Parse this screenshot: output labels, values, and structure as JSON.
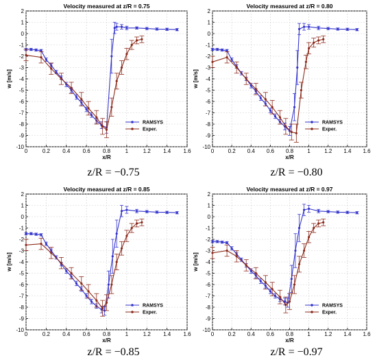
{
  "chart_data": [
    {
      "type": "line",
      "title": "Velocity measured at z/R = 0.75",
      "caption": "z/R = −0.75",
      "xlabel": "x/R",
      "ylabel": "w [m/s]",
      "xlim": [
        0,
        1.6
      ],
      "ylim": [
        -10,
        2
      ],
      "xticks": [
        "0",
        "0.2",
        "0.4",
        "0.6",
        "0.8",
        "1",
        "1.2",
        "1.4",
        "1.6"
      ],
      "yticks": [
        "-10",
        "-9",
        "-8",
        "-7",
        "-6",
        "-5",
        "-4",
        "-3",
        "-2",
        "-1",
        "0",
        "1",
        "2"
      ],
      "grid": true,
      "legend": "bottom-right",
      "series": [
        {
          "name": "RAMSYS",
          "color": "#3333cc",
          "x": [
            0,
            0.05,
            0.1,
            0.15,
            0.2,
            0.25,
            0.3,
            0.35,
            0.4,
            0.45,
            0.5,
            0.55,
            0.6,
            0.65,
            0.7,
            0.75,
            0.8,
            0.85,
            0.88,
            0.9,
            0.95,
            1.0,
            1.1,
            1.2,
            1.3,
            1.4,
            1.5
          ],
          "y": [
            -1.4,
            -1.4,
            -1.45,
            -1.5,
            -2.3,
            -2.8,
            -3.4,
            -3.9,
            -4.5,
            -5.0,
            -5.6,
            -6.1,
            -6.7,
            -7.2,
            -7.7,
            -8.1,
            -8.3,
            -2.0,
            0.5,
            0.6,
            0.6,
            0.5,
            0.5,
            0.45,
            0.4,
            0.38,
            0.35
          ],
          "err": [
            0.1,
            0.1,
            0.1,
            0.1,
            0.15,
            0.15,
            0.15,
            0.15,
            0.2,
            0.2,
            0.2,
            0.2,
            0.2,
            0.2,
            0.2,
            0.3,
            0.5,
            1.5,
            0.5,
            0.3,
            0.2,
            0.15,
            0.1,
            0.1,
            0.1,
            0.1,
            0.1
          ]
        },
        {
          "name": "Exper.",
          "color": "#8b2a1a",
          "x": [
            0,
            0.15,
            0.25,
            0.35,
            0.45,
            0.55,
            0.62,
            0.7,
            0.76,
            0.8,
            0.85,
            0.9,
            0.95,
            1.0,
            1.05,
            1.1,
            1.15
          ],
          "y": [
            -1.9,
            -2.1,
            -3.1,
            -4.0,
            -4.8,
            -5.8,
            -6.6,
            -7.4,
            -8.2,
            -8.5,
            -6.5,
            -4.2,
            -3.0,
            -1.8,
            -1.0,
            -0.6,
            -0.5
          ],
          "err": [
            0.5,
            0.5,
            0.5,
            0.5,
            0.5,
            0.6,
            0.6,
            0.6,
            0.7,
            0.7,
            0.8,
            0.7,
            0.6,
            0.5,
            0.4,
            0.3,
            0.3
          ]
        }
      ]
    },
    {
      "type": "line",
      "title": "Velocity measured at z/R = 0.80",
      "caption": "z/R = −0.80",
      "xlabel": "x/R",
      "ylabel": "w [m/s]",
      "xlim": [
        0,
        1.6
      ],
      "ylim": [
        -10,
        2
      ],
      "xticks": [
        "0",
        "0.2",
        "0.4",
        "0.6",
        "0.8",
        "1",
        "1.2",
        "1.4",
        "1.6"
      ],
      "yticks": [
        "-10",
        "-9",
        "-8",
        "-7",
        "-6",
        "-5",
        "-4",
        "-3",
        "-2",
        "-1",
        "0",
        "1",
        "2"
      ],
      "grid": true,
      "legend": "bottom-right",
      "series": [
        {
          "name": "RAMSYS",
          "color": "#3333cc",
          "x": [
            0,
            0.05,
            0.1,
            0.15,
            0.2,
            0.25,
            0.3,
            0.35,
            0.4,
            0.45,
            0.5,
            0.55,
            0.6,
            0.65,
            0.7,
            0.75,
            0.8,
            0.85,
            0.88,
            0.9,
            0.95,
            1.0,
            1.1,
            1.2,
            1.3,
            1.4,
            1.5
          ],
          "y": [
            -1.4,
            -1.4,
            -1.45,
            -1.5,
            -2.3,
            -2.9,
            -3.5,
            -4.0,
            -4.6,
            -5.1,
            -5.7,
            -6.2,
            -6.8,
            -7.3,
            -7.8,
            -8.2,
            -8.6,
            -6.5,
            -3.0,
            0.4,
            0.6,
            0.6,
            0.5,
            0.45,
            0.4,
            0.38,
            0.35
          ],
          "err": [
            0.1,
            0.1,
            0.1,
            0.1,
            0.15,
            0.15,
            0.15,
            0.15,
            0.2,
            0.2,
            0.2,
            0.2,
            0.2,
            0.2,
            0.2,
            0.3,
            0.4,
            1.2,
            1.5,
            0.5,
            0.3,
            0.2,
            0.15,
            0.1,
            0.1,
            0.1,
            0.1
          ]
        },
        {
          "name": "Exper.",
          "color": "#8b2a1a",
          "x": [
            0,
            0.15,
            0.25,
            0.35,
            0.45,
            0.55,
            0.62,
            0.7,
            0.76,
            0.82,
            0.87,
            0.92,
            0.97,
            1.0,
            1.05,
            1.1,
            1.15
          ],
          "y": [
            -2.5,
            -2.1,
            -3.0,
            -4.0,
            -4.9,
            -5.8,
            -6.5,
            -7.4,
            -8.2,
            -8.7,
            -8.8,
            -5.0,
            -2.5,
            -1.3,
            -0.8,
            -0.6,
            -0.5
          ],
          "err": [
            0.5,
            0.5,
            0.5,
            0.5,
            0.5,
            0.6,
            0.6,
            0.6,
            0.7,
            0.7,
            0.8,
            0.7,
            0.6,
            0.5,
            0.4,
            0.3,
            0.3
          ]
        }
      ]
    },
    {
      "type": "line",
      "title": "Velocity measured at z/R = 0.85",
      "caption": "z/R = −0.85",
      "xlabel": "x/R",
      "ylabel": "w [m/s]",
      "xlim": [
        0,
        1.6
      ],
      "ylim": [
        -10,
        2
      ],
      "xticks": [
        "0",
        "0.2",
        "0.4",
        "0.6",
        "0.8",
        "1",
        "1.2",
        "1.4",
        "1.6"
      ],
      "yticks": [
        "-10",
        "-9",
        "-8",
        "-7",
        "-6",
        "-5",
        "-4",
        "-3",
        "-2",
        "-1",
        "0",
        "1",
        "2"
      ],
      "grid": true,
      "legend": "bottom-right",
      "series": [
        {
          "name": "RAMSYS",
          "color": "#3333cc",
          "x": [
            0,
            0.05,
            0.1,
            0.15,
            0.2,
            0.25,
            0.3,
            0.35,
            0.4,
            0.45,
            0.5,
            0.55,
            0.6,
            0.65,
            0.7,
            0.75,
            0.78,
            0.82,
            0.86,
            0.9,
            0.95,
            1.0,
            1.1,
            1.2,
            1.3,
            1.4,
            1.5
          ],
          "y": [
            -1.5,
            -1.5,
            -1.55,
            -1.6,
            -2.4,
            -3.0,
            -3.6,
            -4.2,
            -4.8,
            -5.3,
            -5.9,
            -6.4,
            -7.0,
            -7.5,
            -7.9,
            -8.2,
            -8.3,
            -6.0,
            -3.5,
            -1.5,
            0.5,
            0.6,
            0.5,
            0.45,
            0.4,
            0.38,
            0.35
          ],
          "err": [
            0.1,
            0.1,
            0.1,
            0.1,
            0.15,
            0.15,
            0.15,
            0.15,
            0.2,
            0.2,
            0.2,
            0.2,
            0.2,
            0.2,
            0.2,
            0.3,
            0.4,
            1.2,
            1.5,
            1.2,
            0.5,
            0.3,
            0.15,
            0.1,
            0.1,
            0.1,
            0.1
          ]
        },
        {
          "name": "Exper.",
          "color": "#8b2a1a",
          "x": [
            0,
            0.15,
            0.25,
            0.35,
            0.45,
            0.55,
            0.62,
            0.7,
            0.76,
            0.8,
            0.85,
            0.9,
            0.95,
            1.0,
            1.05,
            1.1,
            1.15
          ],
          "y": [
            -2.5,
            -2.4,
            -3.2,
            -4.1,
            -5.0,
            -5.9,
            -6.6,
            -7.4,
            -8.1,
            -7.6,
            -6.0,
            -4.0,
            -2.8,
            -1.7,
            -1.0,
            -0.6,
            -0.5
          ],
          "err": [
            0.5,
            0.5,
            0.5,
            0.5,
            0.5,
            0.6,
            0.6,
            0.6,
            0.7,
            0.7,
            0.8,
            0.7,
            0.6,
            0.5,
            0.4,
            0.3,
            0.3
          ]
        }
      ]
    },
    {
      "type": "line",
      "title": "Velocity measured at z/R = 0.97",
      "caption": "z/R = −0.97",
      "xlabel": "x/R",
      "ylabel": "w [m/s]",
      "xlim": [
        0,
        1.6
      ],
      "ylim": [
        -10,
        2
      ],
      "xticks": [
        "0",
        "0.2",
        "0.4",
        "0.6",
        "0.8",
        "1",
        "1.2",
        "1.4",
        "1.6"
      ],
      "yticks": [
        "-10",
        "-9",
        "-8",
        "-7",
        "-6",
        "-5",
        "-4",
        "-3",
        "-2",
        "-1",
        "0",
        "1",
        "2"
      ],
      "grid": true,
      "legend": "bottom-right",
      "series": [
        {
          "name": "RAMSYS",
          "color": "#3333cc",
          "x": [
            0,
            0.05,
            0.1,
            0.15,
            0.2,
            0.25,
            0.3,
            0.35,
            0.4,
            0.45,
            0.5,
            0.55,
            0.6,
            0.65,
            0.7,
            0.75,
            0.78,
            0.82,
            0.86,
            0.9,
            0.95,
            1.0,
            1.1,
            1.2,
            1.3,
            1.4,
            1.5
          ],
          "y": [
            -2.2,
            -2.2,
            -2.25,
            -2.3,
            -2.8,
            -3.3,
            -3.8,
            -4.3,
            -4.8,
            -5.2,
            -5.7,
            -6.1,
            -6.6,
            -7.0,
            -7.3,
            -7.5,
            -7.6,
            -5.5,
            -3.0,
            -1.0,
            0.6,
            0.7,
            0.5,
            0.45,
            0.4,
            0.38,
            0.35
          ],
          "err": [
            0.1,
            0.1,
            0.1,
            0.1,
            0.15,
            0.15,
            0.15,
            0.15,
            0.2,
            0.2,
            0.2,
            0.2,
            0.2,
            0.2,
            0.2,
            0.3,
            0.4,
            1.2,
            1.5,
            1.2,
            0.5,
            0.3,
            0.15,
            0.1,
            0.1,
            0.1,
            0.1
          ]
        },
        {
          "name": "Exper.",
          "color": "#8b2a1a",
          "x": [
            0,
            0.15,
            0.25,
            0.35,
            0.45,
            0.55,
            0.62,
            0.7,
            0.76,
            0.8,
            0.85,
            0.9,
            0.95,
            1.0,
            1.05,
            1.1,
            1.15
          ],
          "y": [
            -3.2,
            -3.0,
            -3.5,
            -4.3,
            -5.0,
            -5.8,
            -6.4,
            -7.1,
            -7.8,
            -7.5,
            -6.0,
            -4.2,
            -3.0,
            -1.8,
            -1.0,
            -0.6,
            -0.5
          ],
          "err": [
            0.5,
            0.5,
            0.5,
            0.5,
            0.5,
            0.6,
            0.6,
            0.6,
            0.7,
            0.7,
            0.8,
            0.7,
            0.6,
            0.5,
            0.4,
            0.3,
            0.3
          ]
        }
      ]
    }
  ]
}
